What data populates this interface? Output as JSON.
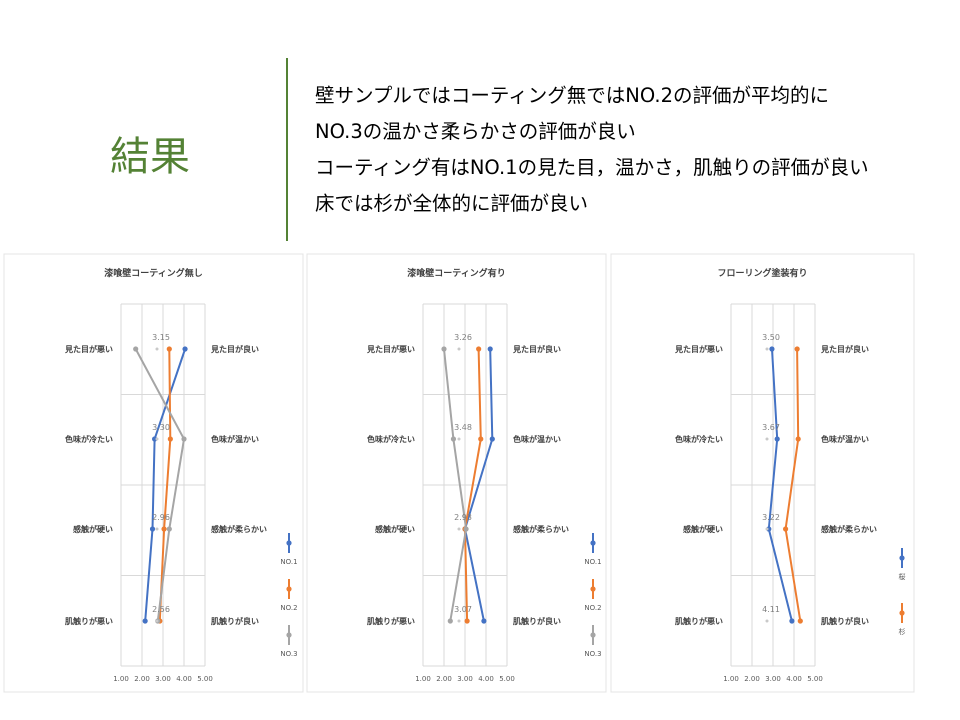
{
  "slide": {
    "title": "結果",
    "points": [
      "壁サンプルではコーティング無ではNO.2の評価が平均的に",
      "NO.3の温かさ柔らかさの評価が良い",
      "コーティング有はNO.1の見た目，温かさ，肌触りの評価が良い",
      "床では杉が全体的に評価が良い"
    ]
  },
  "chart_data": [
    {
      "type": "line",
      "title": "漆喰壁コーティング無し",
      "left_labels": [
        "見た目が悪い",
        "色味が冷たい",
        "感触が硬い",
        "肌触りが悪い"
      ],
      "right_labels": [
        "見た目が良い",
        "色味が温かい",
        "感触が柔らかい",
        "肌触りが良い"
      ],
      "xlim": [
        1,
        5
      ],
      "x_ticks": [
        "1.00",
        "2.00",
        "3.00",
        "4.00",
        "5.00"
      ],
      "grid": true,
      "legend_position": "right",
      "mean_labels": [
        "3.15",
        "3.30",
        "2.96",
        "2.56"
      ],
      "series": [
        {
          "name": "NO.1",
          "color": "#4472c4",
          "values": [
            4.05,
            2.6,
            2.5,
            2.15
          ]
        },
        {
          "name": "NO.2",
          "color": "#ed7d31",
          "values": [
            3.3,
            3.35,
            3.05,
            2.85
          ]
        },
        {
          "name": "NO.3",
          "color": "#a5a5a5",
          "values": [
            1.7,
            4.0,
            3.3,
            2.75
          ]
        }
      ]
    },
    {
      "type": "line",
      "title": "漆喰壁コーティング有り",
      "left_labels": [
        "見た目が悪い",
        "色味が冷たい",
        "感触が硬い",
        "肌触りが悪い"
      ],
      "right_labels": [
        "見た目が良い",
        "色味が温かい",
        "感触が柔らかい",
        "肌触りが良い"
      ],
      "xlim": [
        1,
        5
      ],
      "x_ticks": [
        "1.00",
        "2.00",
        "3.00",
        "4.00",
        "5.00"
      ],
      "grid": true,
      "legend_position": "right",
      "mean_labels": [
        "3.26",
        "3.48",
        "2.93",
        "3.07"
      ],
      "series": [
        {
          "name": "NO.1",
          "color": "#4472c4",
          "values": [
            4.2,
            4.3,
            3.0,
            3.9
          ]
        },
        {
          "name": "NO.2",
          "color": "#ed7d31",
          "values": [
            3.65,
            3.75,
            3.0,
            3.1
          ]
        },
        {
          "name": "NO.3",
          "color": "#a5a5a5",
          "values": [
            2.0,
            2.45,
            3.05,
            2.3
          ]
        }
      ]
    },
    {
      "type": "line",
      "title": "フローリング塗装有り",
      "left_labels": [
        "見た目が悪い",
        "色味が冷たい",
        "感触が硬い",
        "肌触りが悪い"
      ],
      "right_labels": [
        "見た目が良い",
        "色味が温かい",
        "感触が柔らかい",
        "肌触りが良い"
      ],
      "xlim": [
        1,
        5
      ],
      "x_ticks": [
        "1.00",
        "2.00",
        "3.00",
        "4.00",
        "5.00"
      ],
      "grid": true,
      "legend_position": "right",
      "mean_labels": [
        "3.50",
        "3.67",
        "3.22",
        "4.11"
      ],
      "series": [
        {
          "name": "桜",
          "color": "#4472c4",
          "values": [
            2.95,
            3.2,
            2.8,
            3.9
          ]
        },
        {
          "name": "杉",
          "color": "#ed7d31",
          "values": [
            4.15,
            4.2,
            3.6,
            4.3
          ]
        }
      ]
    }
  ]
}
